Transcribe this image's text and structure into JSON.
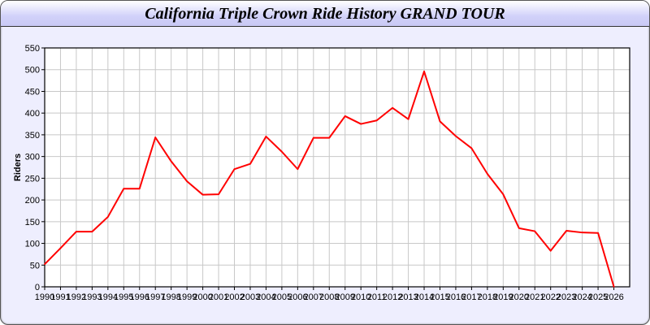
{
  "window": {
    "title": "California Triple Crown Ride History GRAND TOUR",
    "background": "#eeeefe"
  },
  "chart_data": {
    "type": "line",
    "title": "California Triple Crown Ride History GRAND TOUR",
    "xlabel": "",
    "ylabel": "Riders",
    "x": [
      1990,
      1991,
      1992,
      1993,
      1994,
      1995,
      1996,
      1997,
      1998,
      1999,
      2000,
      2001,
      2002,
      2003,
      2004,
      2005,
      2006,
      2007,
      2008,
      2009,
      2010,
      2011,
      2012,
      2013,
      2014,
      2015,
      2016,
      2017,
      2018,
      2019,
      2020,
      2021,
      2022,
      2023,
      2024,
      2025,
      2026
    ],
    "series": [
      {
        "values": [
          52,
          89,
          127,
          127,
          161,
          226,
          226,
          344,
          289,
          243,
          212,
          213,
          271,
          283,
          346,
          311,
          271,
          343,
          343,
          393,
          375,
          383,
          412,
          386,
          496,
          381,
          347,
          319,
          260,
          213,
          135,
          128,
          83,
          129,
          125,
          124,
          0
        ],
        "color": "#ff0000"
      }
    ],
    "xlim": [
      1990,
      2027
    ],
    "ylim": [
      0,
      550
    ],
    "yticks": [
      0,
      50,
      100,
      150,
      200,
      250,
      300,
      350,
      400,
      450,
      500,
      550
    ],
    "grid": true,
    "legend": "none"
  }
}
